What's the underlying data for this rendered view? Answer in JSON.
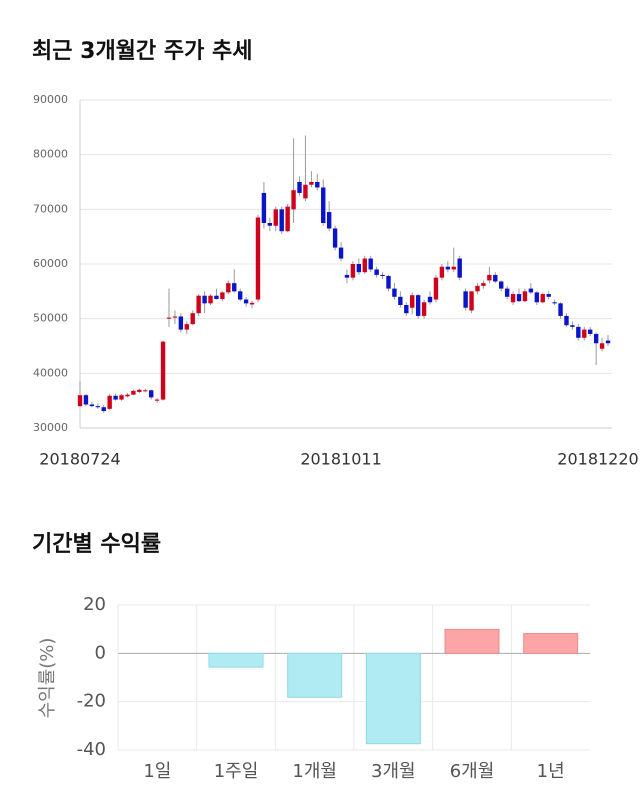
{
  "chart_data": [
    {
      "type": "candlestick",
      "title": "최근 3개월간 주가 추세",
      "categories": [
        "20180724",
        null,
        null,
        null,
        null,
        null,
        null,
        null,
        null,
        null,
        null,
        null,
        null,
        null,
        null,
        null,
        null,
        null,
        null,
        null,
        null,
        null,
        null,
        null,
        null,
        null,
        null,
        null,
        null,
        null,
        null,
        null,
        null,
        null,
        null,
        null,
        null,
        null,
        null,
        null,
        null,
        null,
        null,
        null,
        "20181011",
        null,
        null,
        null,
        null,
        null,
        null,
        null,
        null,
        null,
        null,
        null,
        null,
        null,
        null,
        null,
        null,
        null,
        null,
        null,
        null,
        null,
        null,
        null,
        null,
        null,
        null,
        null,
        null,
        null,
        null,
        null,
        null,
        null,
        null,
        null,
        null,
        null,
        null,
        null,
        null,
        null,
        null,
        null,
        null,
        "20181220"
      ],
      "open": [
        34000,
        36000,
        34300,
        34000,
        33800,
        33500,
        35900,
        35200,
        35800,
        36100,
        36600,
        36800,
        36900,
        35000,
        35200,
        50000,
        50200,
        50400,
        48000,
        49000,
        51000,
        54200,
        52800,
        54200,
        53600,
        54800,
        56500,
        55000,
        53500,
        52600,
        53500,
        73000,
        67500,
        67000,
        70000,
        66000,
        70000,
        75000,
        72000,
        74500,
        75000,
        74000,
        69500,
        66500,
        63000,
        58000,
        57500,
        60000,
        58500,
        61000,
        59000,
        58000,
        57800,
        55500,
        54000,
        52500,
        52000,
        54300,
        50500,
        54000,
        53500,
        57500,
        59500,
        59000,
        61000,
        55000,
        51500,
        55000,
        56000,
        57000,
        58000,
        56800,
        55500,
        53000,
        54500,
        53200,
        55500,
        54800,
        53000,
        54500,
        53000,
        52800,
        50500,
        48800,
        48500,
        46500,
        48000,
        47200,
        44500,
        46000
      ],
      "high": [
        38500,
        36200,
        34800,
        34500,
        34200,
        36200,
        36300,
        36200,
        36400,
        37000,
        37200,
        37200,
        37000,
        35500,
        46000,
        55500,
        51500,
        51000,
        49500,
        51500,
        54500,
        55000,
        54500,
        55500,
        55000,
        57000,
        59000,
        55500,
        54000,
        53200,
        69000,
        75000,
        68500,
        70500,
        70500,
        71000,
        83000,
        76000,
        83500,
        77000,
        76500,
        75500,
        71500,
        67000,
        64000,
        59000,
        60500,
        61000,
        61500,
        61500,
        59500,
        58500,
        58000,
        56500,
        55000,
        53000,
        54800,
        54500,
        53500,
        55000,
        58000,
        60000,
        60500,
        63000,
        61500,
        55500,
        55000,
        56500,
        57000,
        59500,
        58500,
        57000,
        56000,
        55000,
        55500,
        55500,
        56500,
        55000,
        54800,
        55000,
        53500,
        53000,
        51000,
        49500,
        49000,
        48500,
        48500,
        47500,
        46500,
        47000
      ],
      "low": [
        33800,
        34000,
        33800,
        33500,
        32800,
        33300,
        35000,
        35000,
        35600,
        36000,
        36400,
        36500,
        35200,
        34600,
        35000,
        48500,
        49000,
        47500,
        47200,
        48800,
        50500,
        51000,
        52500,
        53500,
        53200,
        54500,
        54800,
        53200,
        52200,
        52000,
        53000,
        66500,
        66000,
        66000,
        65500,
        65800,
        67500,
        72500,
        71500,
        74000,
        73500,
        67000,
        66000,
        62500,
        60500,
        56500,
        57000,
        58000,
        58200,
        58500,
        57500,
        57200,
        55000,
        53500,
        52000,
        50500,
        50800,
        50000,
        50000,
        52600,
        53000,
        57000,
        58500,
        58500,
        57000,
        51500,
        51000,
        54500,
        55500,
        56500,
        56500,
        55000,
        53500,
        52500,
        53000,
        53000,
        54500,
        52500,
        52800,
        53500,
        52500,
        50000,
        48500,
        48000,
        46000,
        46000,
        46800,
        41500,
        44000,
        45000
      ],
      "close": [
        36000,
        34300,
        34000,
        33800,
        33100,
        35900,
        35200,
        36000,
        36100,
        36800,
        37000,
        36900,
        35600,
        35200,
        45800,
        50200,
        50400,
        48000,
        49000,
        51000,
        54200,
        52800,
        54200,
        53600,
        54800,
        56500,
        55000,
        53500,
        52800,
        52900,
        68500,
        67500,
        67000,
        70000,
        66000,
        70500,
        73500,
        73000,
        74500,
        75000,
        74000,
        67500,
        66500,
        63000,
        61000,
        57500,
        60000,
        58500,
        61000,
        59000,
        58000,
        57800,
        55500,
        54000,
        52500,
        51000,
        54300,
        50500,
        53000,
        53000,
        57500,
        59500,
        59000,
        59500,
        57500,
        52000,
        55000,
        56000,
        56500,
        58000,
        56800,
        55500,
        54000,
        54500,
        53200,
        55000,
        54800,
        53000,
        54500,
        54000,
        52800,
        50500,
        48800,
        48500,
        46500,
        48000,
        47200,
        45500,
        45500,
        45500
      ],
      "up_color": "#d0021b",
      "down_color": "#0a14c8",
      "ylim": [
        30000,
        90000
      ],
      "yticks": [
        30000,
        40000,
        50000,
        60000,
        70000,
        80000,
        90000
      ],
      "grid": true
    },
    {
      "type": "bar",
      "title": "기간별 수익률",
      "ylabel": "수익률(%)",
      "categories": [
        "1일",
        "1주일",
        "1개월",
        "3개월",
        "6개월",
        "1년"
      ],
      "values": [
        0,
        -5.7,
        -18.2,
        -37.4,
        9.9,
        8.2
      ],
      "positive_color": "#fba5a6",
      "negative_color": "#b0ebf3",
      "ylim": [
        -40,
        20
      ],
      "yticks": [
        -40,
        -20,
        0,
        20
      ],
      "grid": true
    }
  ]
}
